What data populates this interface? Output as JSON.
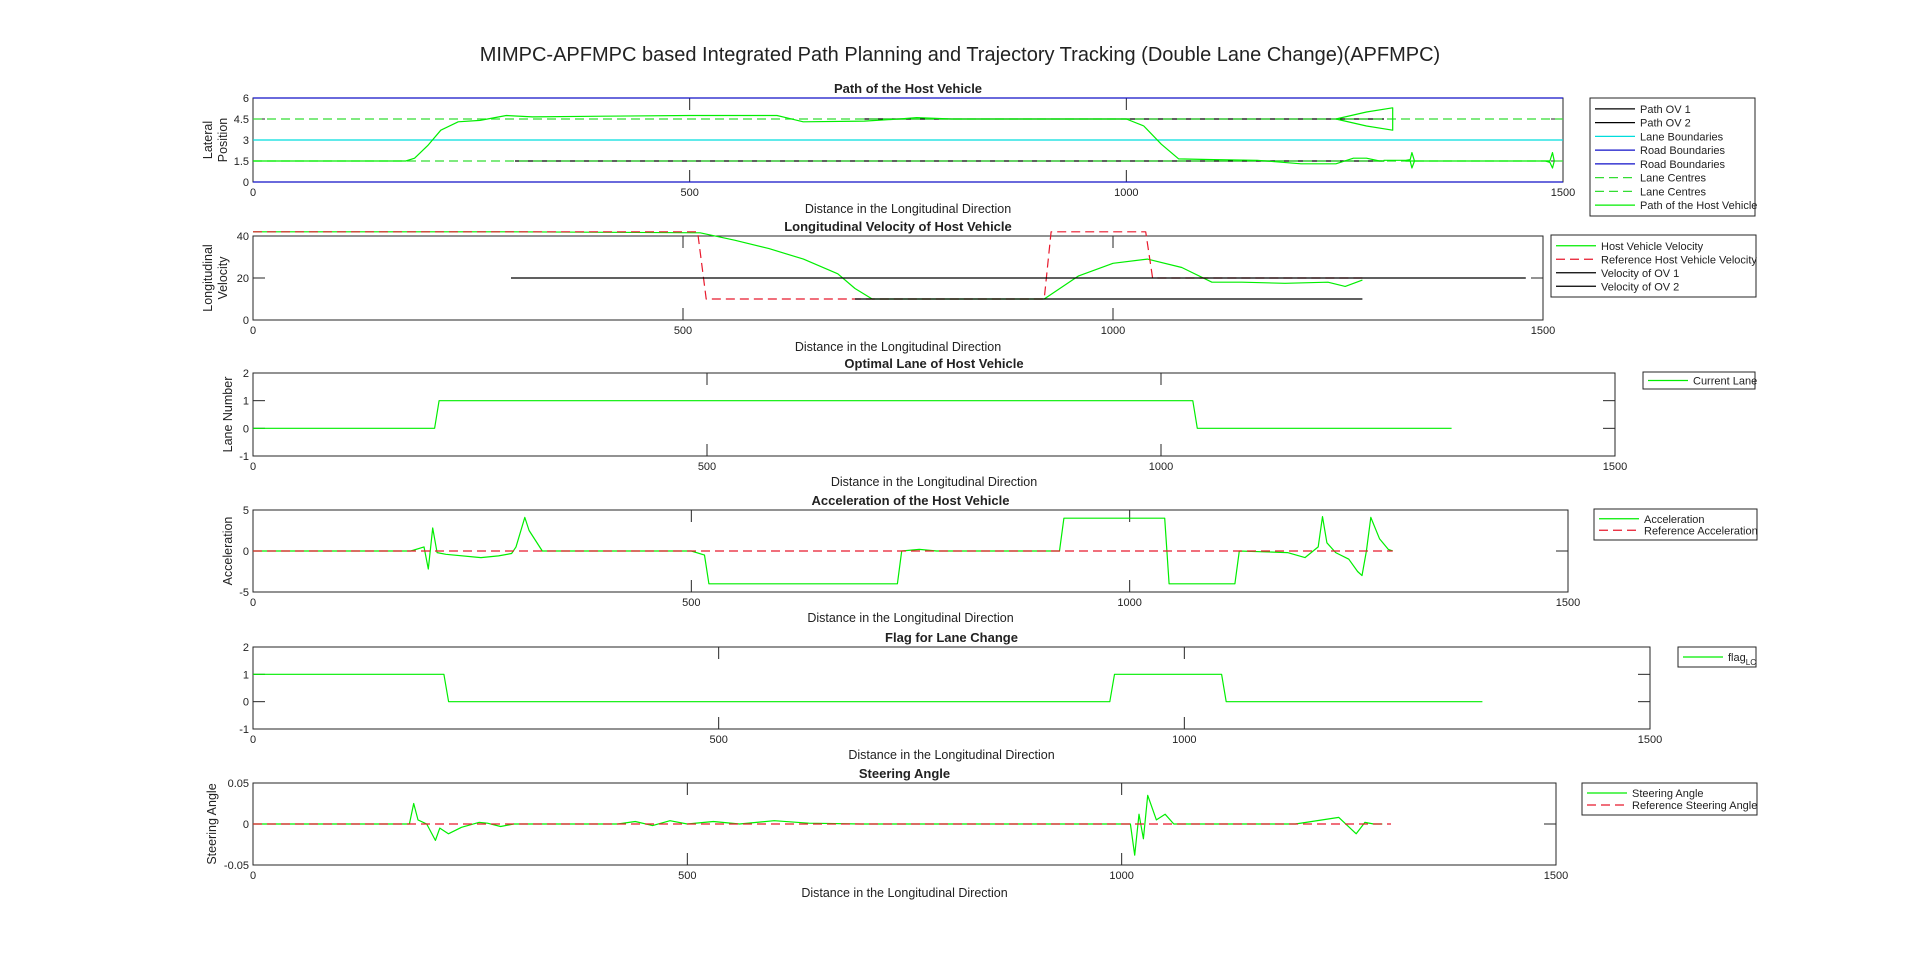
{
  "figure": {
    "title": "MIMPC-APFMPC based Integrated Path Planning and Trajectory Tracking (Double Lane Change)(APFMPC)"
  },
  "colors": {
    "host": "#00ee00",
    "reference": "#e8192c",
    "other_vehicle": "#000000",
    "lane_boundary": "#00dddd",
    "road_boundary": "#1010c8",
    "lane_centre": "#33dd33",
    "axis": "#262626"
  },
  "chart_data": [
    {
      "type": "line",
      "title": "Path of the Host Vehicle",
      "xlabel": "Distance in the Longitudinal Direction",
      "ylabel": [
        "Lateral",
        "Position"
      ],
      "xlim": [
        0,
        1500
      ],
      "ylim": [
        0,
        6
      ],
      "xticks": [
        "0",
        "500",
        "1000",
        "1500"
      ],
      "yticks": [
        "0",
        "1.5",
        "3",
        "4.5",
        "6"
      ],
      "legend_position": "right",
      "series": [
        {
          "name": "Path OV 1",
          "color": "other_vehicle",
          "dash": "solid",
          "x": [
            300,
            1295
          ],
          "y": [
            1.5,
            1.5
          ]
        },
        {
          "name": "Path OV 2",
          "color": "other_vehicle",
          "dash": "solid",
          "x": [
            700,
            1295
          ],
          "y": [
            4.5,
            4.5
          ]
        },
        {
          "name": "Lane Boundaries",
          "color": "lane_boundary",
          "dash": "solid",
          "x": [
            0,
            1500
          ],
          "y": [
            3,
            3
          ]
        },
        {
          "name": "Road Boundaries",
          "color": "road_boundary",
          "dash": "solid",
          "x": [
            0,
            1500
          ],
          "y": [
            0,
            0
          ]
        },
        {
          "name": "Road Boundaries",
          "color": "road_boundary",
          "dash": "solid",
          "x": [
            0,
            1500
          ],
          "y": [
            6,
            6
          ]
        },
        {
          "name": "Lane Centres",
          "color": "lane_centre",
          "dash": "dashed",
          "x": [
            0,
            1500
          ],
          "y": [
            1.5,
            1.5
          ]
        },
        {
          "name": "Lane Centres",
          "color": "lane_centre",
          "dash": "dashed",
          "x": [
            0,
            1500
          ],
          "y": [
            4.5,
            4.5
          ]
        },
        {
          "name": "Path of the Host Vehicle",
          "color": "host",
          "dash": "solid",
          "x": [
            0,
            175,
            185,
            200,
            215,
            235,
            260,
            290,
            320,
            400,
            500,
            600,
            610,
            630,
            700,
            740,
            760,
            800,
            900,
            1000,
            1020,
            1040,
            1060,
            1100,
            1150,
            1200,
            1240,
            1260,
            1275,
            1290,
            1295,
            1295,
            1320,
            1325,
            1327,
            1330,
            1327,
            1325,
            1320,
            1400,
            1480,
            1485,
            1488,
            1490,
            1488,
            1485,
            1480
          ],
          "y": [
            1.5,
            1.5,
            1.7,
            2.6,
            3.7,
            4.3,
            4.4,
            4.75,
            4.65,
            4.7,
            4.75,
            4.75,
            4.6,
            4.3,
            4.35,
            4.5,
            4.6,
            4.5,
            4.5,
            4.5,
            4.0,
            2.7,
            1.65,
            1.6,
            1.55,
            1.3,
            1.3,
            1.7,
            1.7,
            1.5,
            1.5,
            1.55,
            1.55,
            1.6,
            2.1,
            1.5,
            1.0,
            1.5,
            1.5,
            1.5,
            1.5,
            1.5,
            2.1,
            1.5,
            1.0,
            1.4,
            1.5
          ]
        },
        {
          "name": "",
          "color": "host",
          "dash": "solid",
          "x": [
            1240,
            1275,
            1305,
            1305,
            1305,
            1275,
            1240
          ],
          "y": [
            4.5,
            5.0,
            5.3,
            4.5,
            3.7,
            4.0,
            4.5
          ]
        }
      ]
    },
    {
      "type": "line",
      "title": "Longitudinal Velocity of Host Vehicle",
      "xlabel": "Distance in the Longitudinal Direction",
      "ylabel": [
        "Longitudinal",
        "Velocity"
      ],
      "xlim": [
        0,
        1500
      ],
      "ylim": [
        0,
        40
      ],
      "xticks": [
        "0",
        "500",
        "1000",
        "1500"
      ],
      "yticks": [
        "0",
        "20",
        "40"
      ],
      "legend_position": "right",
      "series": [
        {
          "name": "Host Vehicle Velocity",
          "color": "host",
          "dash": "solid",
          "x": [
            0,
            300,
            520,
            560,
            600,
            640,
            680,
            700,
            720,
            920,
            960,
            1000,
            1040,
            1080,
            1115,
            1150,
            1200,
            1250,
            1270,
            1290
          ],
          "y": [
            42,
            42,
            41.5,
            38,
            34,
            29,
            22,
            15,
            10,
            10,
            21,
            27,
            29,
            25,
            18,
            18,
            17.5,
            18,
            16,
            19
          ]
        },
        {
          "name": "Reference Host Vehicle Velocity",
          "color": "reference",
          "dash": "dashed",
          "x": [
            0,
            517,
            527,
            920,
            928,
            1038,
            1046,
            1290
          ],
          "y": [
            42,
            42,
            10,
            10,
            42,
            42,
            20,
            20
          ]
        },
        {
          "name": "Velocity of OV 1",
          "color": "other_vehicle",
          "dash": "solid",
          "x": [
            300,
            1480
          ],
          "y": [
            20,
            20
          ]
        },
        {
          "name": "Velocity of OV 2",
          "color": "other_vehicle",
          "dash": "solid",
          "x": [
            700,
            1290
          ],
          "y": [
            10,
            10
          ]
        }
      ]
    },
    {
      "type": "line",
      "title": "Optimal Lane of Host Vehicle",
      "xlabel": "Distance in the Longitudinal Direction",
      "ylabel": [
        "Lane Number"
      ],
      "xlim": [
        0,
        1500
      ],
      "ylim": [
        -1,
        2
      ],
      "xticks": [
        "0",
        "500",
        "1000",
        "1500"
      ],
      "yticks": [
        "-1",
        "0",
        "1",
        "2"
      ],
      "legend_position": "right",
      "series": [
        {
          "name": "Current Lane",
          "color": "host",
          "dash": "solid",
          "x": [
            0,
            200,
            205,
            1035,
            1040,
            1320
          ],
          "y": [
            0,
            0,
            1,
            1,
            0,
            0
          ]
        }
      ]
    },
    {
      "type": "line",
      "title": "Acceleration of the Host Vehicle",
      "xlabel": "Distance in the Longitudinal Direction",
      "ylabel": [
        "Acceleration"
      ],
      "xlim": [
        0,
        1500
      ],
      "ylim": [
        -5,
        5
      ],
      "xticks": [
        "0",
        "500",
        "1000",
        "1500"
      ],
      "yticks": [
        "-5",
        "0",
        "5"
      ],
      "legend_position": "right",
      "series": [
        {
          "name": "Acceleration",
          "color": "host",
          "dash": "solid",
          "x": [
            0,
            180,
            195,
            200,
            205,
            210,
            220,
            260,
            280,
            295,
            300,
            310,
            315,
            330,
            500,
            515,
            520,
            735,
            740,
            760,
            780,
            800,
            920,
            925,
            1040,
            1045,
            1120,
            1125,
            1180,
            1200,
            1215,
            1220,
            1225,
            1235,
            1250,
            1260,
            1265,
            1270,
            1275,
            1285,
            1295,
            1300
          ],
          "y": [
            0,
            0,
            0.5,
            -2.2,
            2.8,
            -0.2,
            -0.4,
            -0.8,
            -0.6,
            -0.3,
            0.5,
            4.1,
            2.5,
            0,
            0,
            -0.5,
            -4,
            -4,
            0,
            0.2,
            0,
            0,
            0,
            4,
            4,
            -4,
            -4,
            0,
            -0.2,
            -0.8,
            0.5,
            4.2,
            1.0,
            -0.2,
            -1.0,
            -2.5,
            -3.0,
            0,
            4.1,
            1.5,
            0.2,
            0
          ]
        },
        {
          "name": "Reference Acceleration",
          "color": "reference",
          "dash": "dashed",
          "x": [
            0,
            1300
          ],
          "y": [
            0,
            0
          ]
        }
      ]
    },
    {
      "type": "line",
      "title": "Flag for Lane Change",
      "xlabel": "Distance in the Longitudinal Direction",
      "ylabel": [],
      "xlim": [
        0,
        1500
      ],
      "ylim": [
        -1,
        2
      ],
      "xticks": [
        "0",
        "500",
        "1000",
        "1500"
      ],
      "yticks": [
        "-1",
        "0",
        "1",
        "2"
      ],
      "legend_position": "right",
      "legend_label": "flag",
      "legend_subscript": "LC",
      "series": [
        {
          "name": "flagLC",
          "color": "host",
          "dash": "solid",
          "x": [
            0,
            205,
            210,
            920,
            925,
            1040,
            1045,
            1320
          ],
          "y": [
            1,
            1,
            0,
            0,
            1,
            1,
            0,
            0
          ]
        }
      ]
    },
    {
      "type": "line",
      "title": "Steering Angle",
      "xlabel": "Distance in the Longitudinal Direction",
      "ylabel": [
        "Steering Angle"
      ],
      "xlim": [
        0,
        1500
      ],
      "ylim": [
        -0.05,
        0.05
      ],
      "xticks": [
        "0",
        "500",
        "1000",
        "1500"
      ],
      "yticks": [
        "-0.05",
        "0",
        "0.05"
      ],
      "legend_position": "right",
      "series": [
        {
          "name": "Steering Angle",
          "color": "host",
          "dash": "solid",
          "x": [
            0,
            180,
            185,
            190,
            200,
            210,
            215,
            225,
            240,
            260,
            270,
            285,
            300,
            420,
            440,
            460,
            480,
            500,
            530,
            560,
            600,
            640,
            700,
            1010,
            1015,
            1020,
            1025,
            1030,
            1040,
            1050,
            1060,
            1100,
            1200,
            1250,
            1270,
            1280,
            1290,
            1300
          ],
          "y": [
            0,
            0,
            0.025,
            0.005,
            0,
            -0.02,
            -0.005,
            -0.012,
            -0.004,
            0.002,
            0.001,
            -0.003,
            0,
            0,
            0.003,
            -0.002,
            0.004,
            0,
            0.003,
            0,
            0.004,
            0.001,
            0,
            0,
            -0.038,
            0.012,
            -0.018,
            0.035,
            0.005,
            0.012,
            0,
            0,
            0,
            0.008,
            -0.012,
            0.002,
            0,
            0
          ]
        },
        {
          "name": "Reference Steering Angle",
          "color": "reference",
          "dash": "dashed",
          "x": [
            0,
            1310
          ],
          "y": [
            0,
            0
          ]
        }
      ]
    }
  ]
}
